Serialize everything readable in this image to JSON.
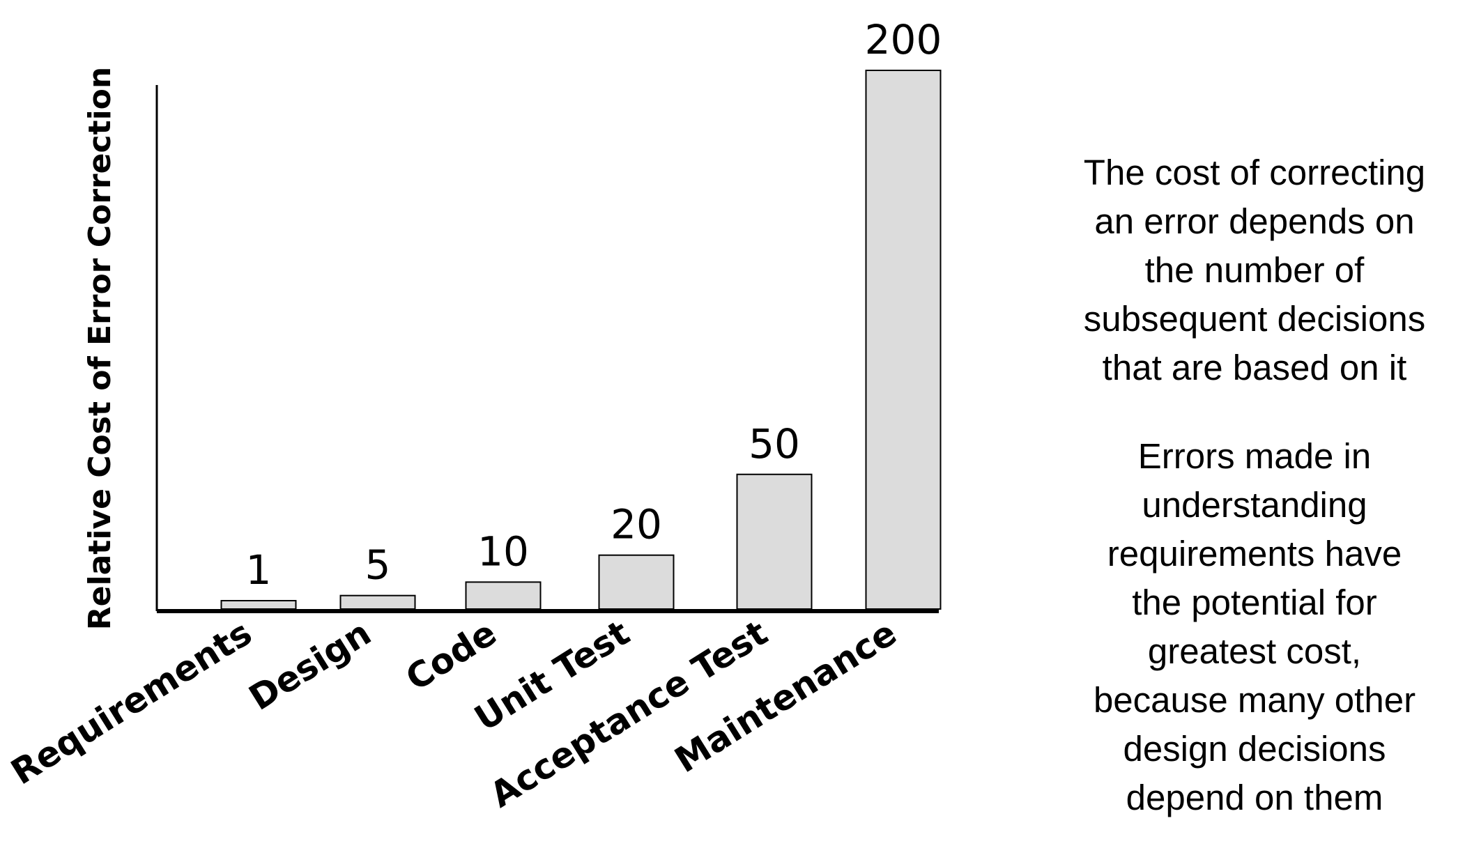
{
  "chart_data": {
    "type": "bar",
    "categories": [
      "Requirements",
      "Design",
      "Code",
      "Unit Test",
      "Acceptance Test",
      "Maintenance"
    ],
    "values": [
      1,
      5,
      10,
      20,
      50,
      200
    ],
    "data_labels": [
      "1",
      "5",
      "10",
      "20",
      "50",
      "200"
    ],
    "ylabel": "Relative Cost of Error Correction",
    "xlabel": "",
    "title": "",
    "ylim": [
      0,
      200
    ],
    "grid": false,
    "bar_fill": "#dcdcdc",
    "bar_stroke": "#000000",
    "axis_color": "#000000"
  },
  "notes": {
    "paragraph_1": "The cost of correcting\nan error depends on\nthe number of\nsubsequent decisions\nthat are based on it",
    "paragraph_2": "Errors made in\nunderstanding\nrequirements have\nthe potential for\ngreatest cost,\nbecause many other\ndesign decisions\ndepend on them"
  }
}
